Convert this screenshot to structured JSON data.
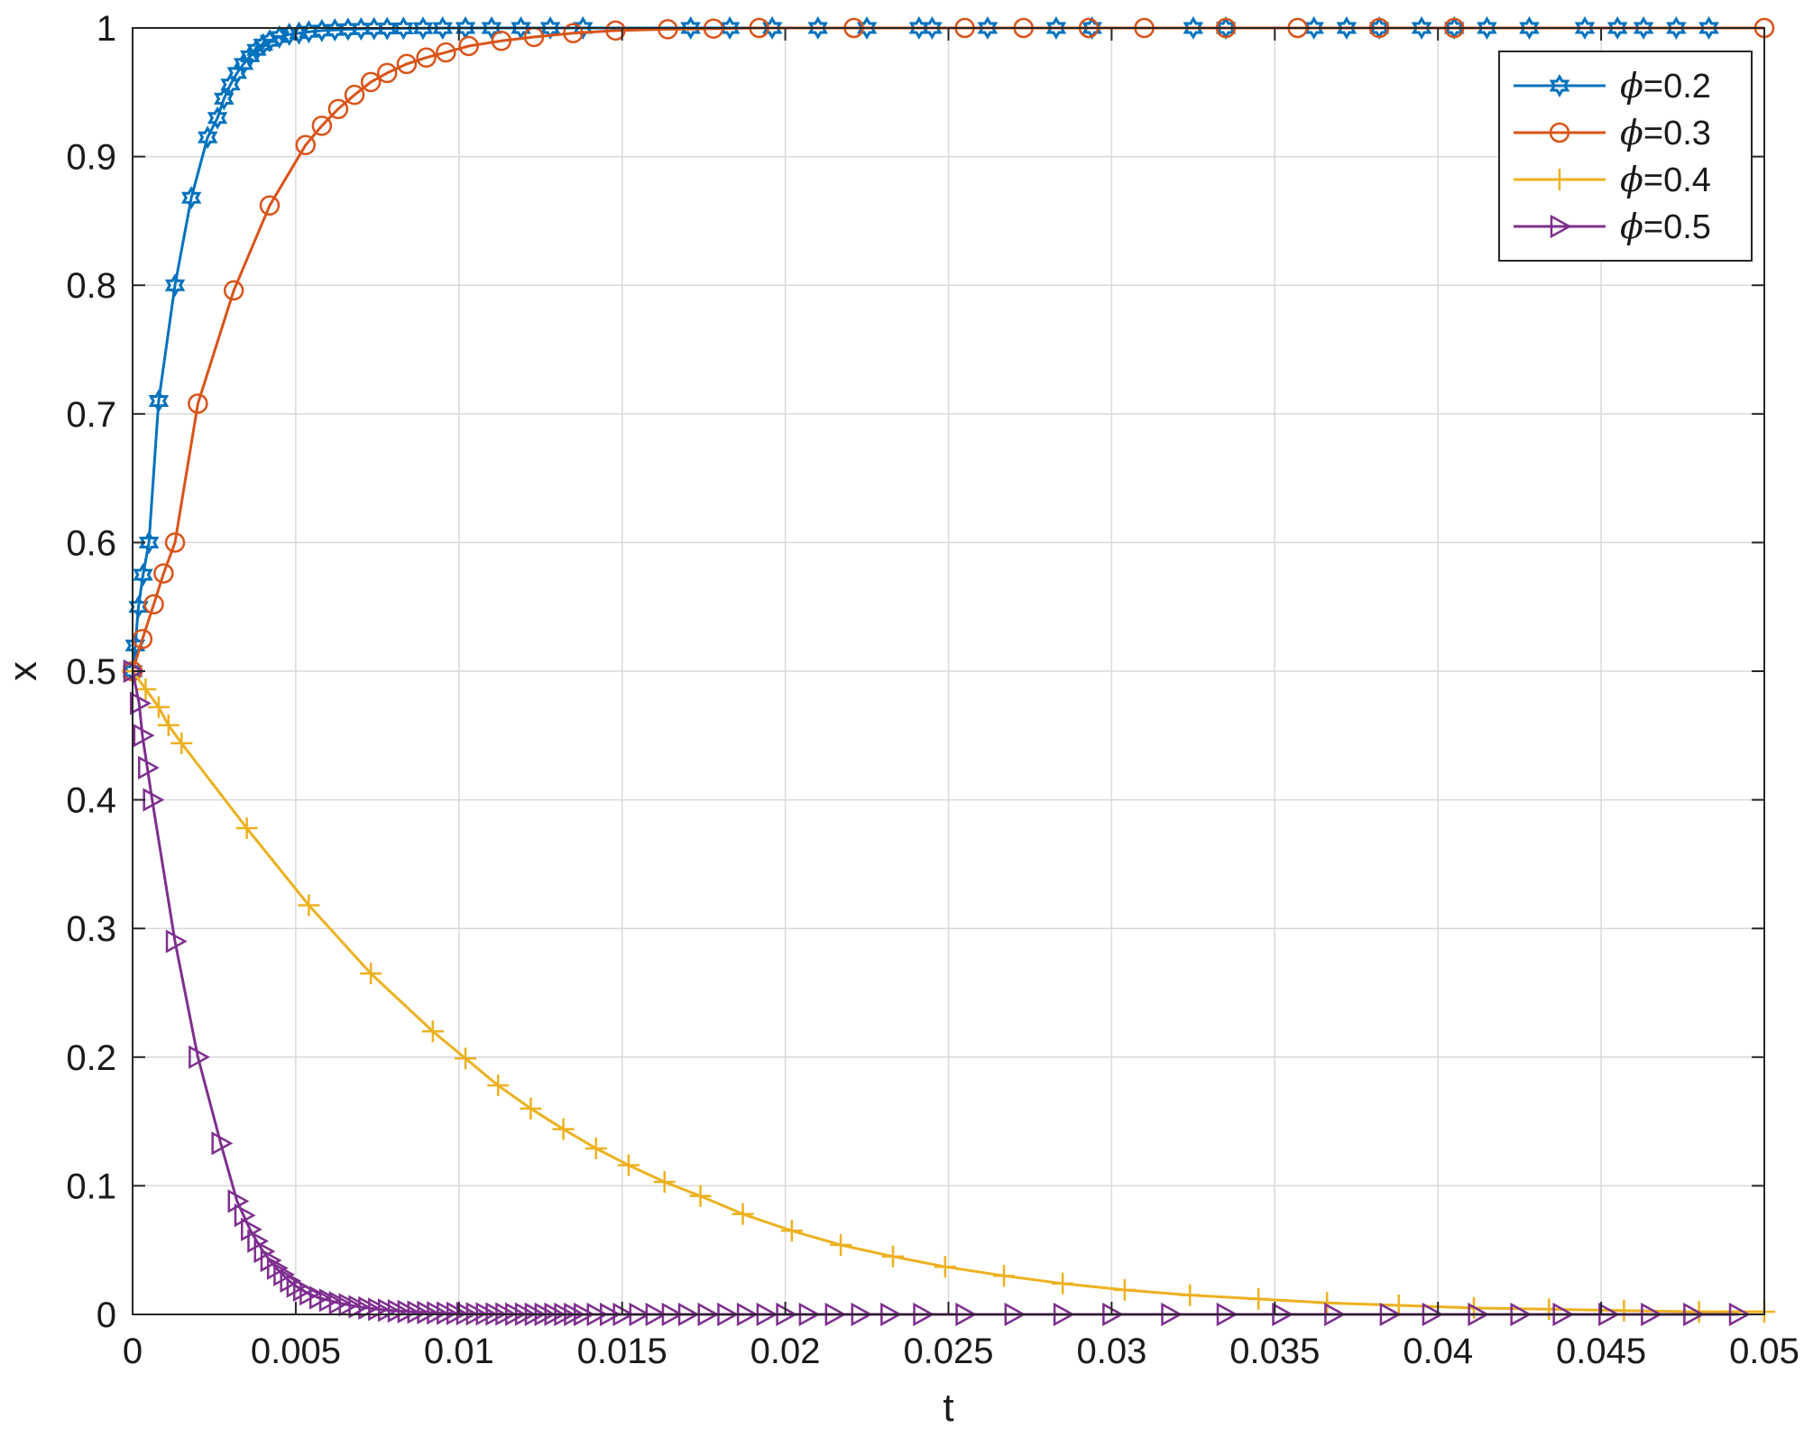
{
  "chart_data": {
    "type": "line",
    "title": "",
    "xlabel": "t",
    "ylabel": "x",
    "xlim": [
      0,
      0.05
    ],
    "ylim": [
      0,
      1
    ],
    "grid": true,
    "legend_position": "top-right",
    "x_ticks": [
      0,
      0.005,
      0.01,
      0.015,
      0.02,
      0.025,
      0.03,
      0.035,
      0.04,
      0.045,
      0.05
    ],
    "x_tick_labels": [
      "0",
      "0.005",
      "0.01",
      "0.015",
      "0.02",
      "0.025",
      "0.03",
      "0.035",
      "0.04",
      "0.045",
      "0.05"
    ],
    "y_ticks": [
      0,
      0.1,
      0.2,
      0.3,
      0.4,
      0.5,
      0.6,
      0.7,
      0.8,
      0.9,
      1
    ],
    "y_tick_labels": [
      "0",
      "0.1",
      "0.2",
      "0.3",
      "0.4",
      "0.5",
      "0.6",
      "0.7",
      "0.8",
      "0.9",
      "1"
    ],
    "series": [
      {
        "name": "=0.2",
        "legend_symbol": "ϕ",
        "color": "#0072BD",
        "marker": "hexagram",
        "x": [
          0,
          8e-05,
          0.00018,
          0.00032,
          0.0005,
          0.0008,
          0.0013,
          0.0018,
          0.0023,
          0.0026,
          0.0028,
          0.003,
          0.0032,
          0.0034,
          0.0036,
          0.0038,
          0.004,
          0.0042,
          0.0045,
          0.0048,
          0.0051,
          0.0054,
          0.0058,
          0.0062,
          0.0066,
          0.007,
          0.0074,
          0.0078,
          0.0083,
          0.0089,
          0.0095,
          0.0102,
          0.011,
          0.0119,
          0.0128,
          0.0138,
          0.0171,
          0.0183,
          0.0196,
          0.021,
          0.0225,
          0.0241,
          0.0245,
          0.0262,
          0.0283,
          0.0294,
          0.0325,
          0.0335,
          0.0362,
          0.0372,
          0.0382,
          0.0395,
          0.0405,
          0.0415,
          0.0428,
          0.0445,
          0.0455,
          0.0463,
          0.0473,
          0.0483
        ],
        "y": [
          0.5,
          0.52,
          0.55,
          0.575,
          0.6,
          0.71,
          0.8,
          0.868,
          0.915,
          0.93,
          0.945,
          0.956,
          0.965,
          0.972,
          0.978,
          0.983,
          0.987,
          0.99,
          0.993,
          0.995,
          0.996,
          0.997,
          0.998,
          0.9985,
          0.999,
          0.9993,
          0.9995,
          0.9996,
          0.9997,
          0.9998,
          0.9999,
          1,
          1,
          1,
          1,
          1,
          1,
          1,
          1,
          1,
          1,
          1,
          1,
          1,
          1,
          1,
          1,
          1,
          1,
          1,
          1,
          1,
          1,
          1,
          1,
          1,
          1,
          1,
          1,
          1
        ]
      },
      {
        "name": "=0.3",
        "legend_symbol": "ϕ",
        "color": "#D95319",
        "marker": "circle",
        "x": [
          0,
          0.0003,
          0.00065,
          0.00095,
          0.0013,
          0.002,
          0.0031,
          0.0042,
          0.0053,
          0.0058,
          0.0063,
          0.0068,
          0.0073,
          0.0078,
          0.0084,
          0.009,
          0.0096,
          0.0103,
          0.0113,
          0.0123,
          0.0135,
          0.0148,
          0.0164,
          0.0178,
          0.0192,
          0.0221,
          0.0255,
          0.0273,
          0.0293,
          0.031,
          0.0335,
          0.0357,
          0.0382,
          0.0405,
          0.05
        ],
        "y": [
          0.5,
          0.525,
          0.552,
          0.576,
          0.6,
          0.708,
          0.796,
          0.862,
          0.909,
          0.924,
          0.937,
          0.948,
          0.958,
          0.965,
          0.972,
          0.977,
          0.981,
          0.986,
          0.99,
          0.993,
          0.996,
          0.998,
          0.999,
          0.9995,
          1,
          1,
          1,
          1,
          1,
          1,
          1,
          1,
          1,
          1,
          1
        ]
      },
      {
        "name": "=0.4",
        "legend_symbol": "ϕ",
        "color": "#EDB120",
        "marker": "plus",
        "x": [
          0,
          0.0004,
          0.0008,
          0.0011,
          0.0015,
          0.0035,
          0.0054,
          0.0073,
          0.0092,
          0.0102,
          0.0112,
          0.0122,
          0.0132,
          0.0142,
          0.0152,
          0.0163,
          0.0174,
          0.0187,
          0.0202,
          0.0217,
          0.0233,
          0.0249,
          0.0267,
          0.0285,
          0.0304,
          0.0324,
          0.0345,
          0.0366,
          0.0388,
          0.0411,
          0.0434,
          0.0457,
          0.048,
          0.05
        ],
        "y": [
          0.5,
          0.486,
          0.472,
          0.458,
          0.444,
          0.378,
          0.318,
          0.265,
          0.22,
          0.199,
          0.178,
          0.16,
          0.144,
          0.129,
          0.116,
          0.103,
          0.092,
          0.078,
          0.065,
          0.054,
          0.045,
          0.037,
          0.03,
          0.024,
          0.019,
          0.015,
          0.012,
          0.009,
          0.007,
          0.005,
          0.004,
          0.003,
          0.002,
          0.002
        ]
      },
      {
        "name": "=0.5",
        "legend_symbol": "ϕ",
        "color": "#7E2F8E",
        "marker": "triangle-right",
        "x": [
          0,
          0.0002,
          0.0003,
          0.00045,
          0.0006,
          0.0013,
          0.002,
          0.0027,
          0.0032,
          0.0034,
          0.0036,
          0.0038,
          0.004,
          0.0042,
          0.0044,
          0.0046,
          0.0048,
          0.005,
          0.0052,
          0.0054,
          0.0057,
          0.006,
          0.0063,
          0.0066,
          0.0069,
          0.0072,
          0.0075,
          0.0078,
          0.0081,
          0.0084,
          0.0087,
          0.009,
          0.0093,
          0.0096,
          0.0099,
          0.0102,
          0.0105,
          0.0108,
          0.0111,
          0.0114,
          0.0117,
          0.012,
          0.0123,
          0.0126,
          0.0129,
          0.0132,
          0.0135,
          0.0138,
          0.0142,
          0.0146,
          0.015,
          0.0155,
          0.016,
          0.0165,
          0.017,
          0.0176,
          0.0182,
          0.0188,
          0.0194,
          0.02,
          0.0207,
          0.0215,
          0.0223,
          0.0232,
          0.0242,
          0.0255,
          0.027,
          0.0285,
          0.03,
          0.0318,
          0.0335,
          0.0352,
          0.0368,
          0.0385,
          0.0398,
          0.0412,
          0.0425,
          0.0438,
          0.0452,
          0.0465,
          0.0478,
          0.0492
        ],
        "y": [
          0.5,
          0.475,
          0.45,
          0.425,
          0.4,
          0.29,
          0.2,
          0.133,
          0.088,
          0.077,
          0.066,
          0.057,
          0.049,
          0.042,
          0.036,
          0.031,
          0.026,
          0.022,
          0.019,
          0.016,
          0.013,
          0.011,
          0.009,
          0.0075,
          0.006,
          0.005,
          0.004,
          0.0033,
          0.0027,
          0.0022,
          0.0018,
          0.0015,
          0.0012,
          0.001,
          0.0008,
          0.0006,
          0.0005,
          0.0004,
          0.0003,
          0.0003,
          0.0002,
          0.0002,
          0.0001,
          0.0001,
          0.0001,
          0,
          0,
          0,
          0,
          0,
          0,
          0,
          0,
          0,
          0,
          0,
          0,
          0,
          0,
          0,
          0,
          0,
          0,
          0,
          0,
          0,
          0,
          0,
          0,
          0,
          0,
          0,
          0,
          0,
          0,
          0,
          0,
          0,
          0,
          0,
          0,
          0
        ]
      }
    ]
  }
}
